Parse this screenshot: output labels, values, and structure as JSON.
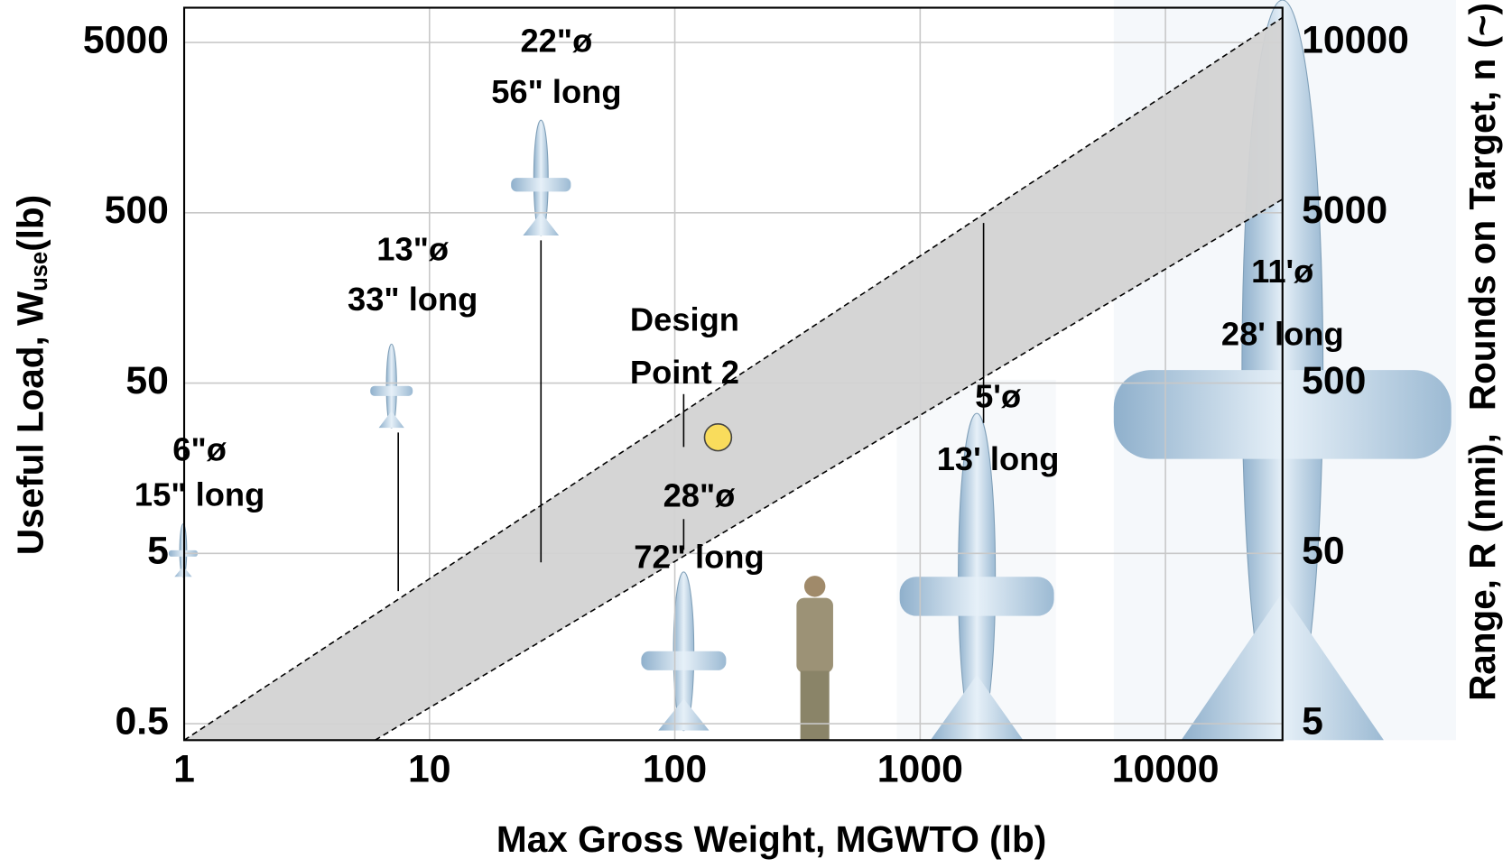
{
  "chart_data": {
    "type": "band",
    "x_label": "Max Gross Weight, MGWTO (lb)",
    "y_label": "Useful Load, W",
    "y_label_sub": "use",
    "y_label_unit": "(lb)",
    "y2_label_range": "Range, R (nmi),",
    "y2_label_rounds": "Rounds on Target, n (~)",
    "log_x": true,
    "log_y": true,
    "grid": true,
    "xlim": [
      1,
      30000
    ],
    "xticks": [
      1,
      10,
      100,
      1000,
      10000
    ],
    "ylim": [
      0.4,
      8000
    ],
    "yticks": [
      0.5,
      5,
      50,
      500,
      5000
    ],
    "y2ticks": [
      5,
      50,
      500,
      5000,
      10000
    ],
    "band": {
      "color": "#d3d3d3",
      "upper": {
        "x": [
          1,
          30000
        ],
        "y": [
          0.4,
          7000
        ]
      },
      "lower": {
        "x": [
          6,
          30000
        ],
        "y": [
          0.4,
          600
        ]
      }
    },
    "design_point": {
      "label_line1": "Design",
      "label_line2": "Point 2",
      "x": 150,
      "y": 24,
      "color": "#f9dc5c"
    },
    "vehicles": [
      {
        "diameter": "6\"ø",
        "length": "15\" long"
      },
      {
        "diameter": "13\"ø",
        "length": "33\" long"
      },
      {
        "diameter": "22\"ø",
        "length": "56\" long"
      },
      {
        "diameter": "28\"ø",
        "length": "72\" long"
      },
      {
        "diameter": "5'ø",
        "length": "13' long"
      },
      {
        "diameter": "11'ø",
        "length": "28' long"
      }
    ]
  }
}
